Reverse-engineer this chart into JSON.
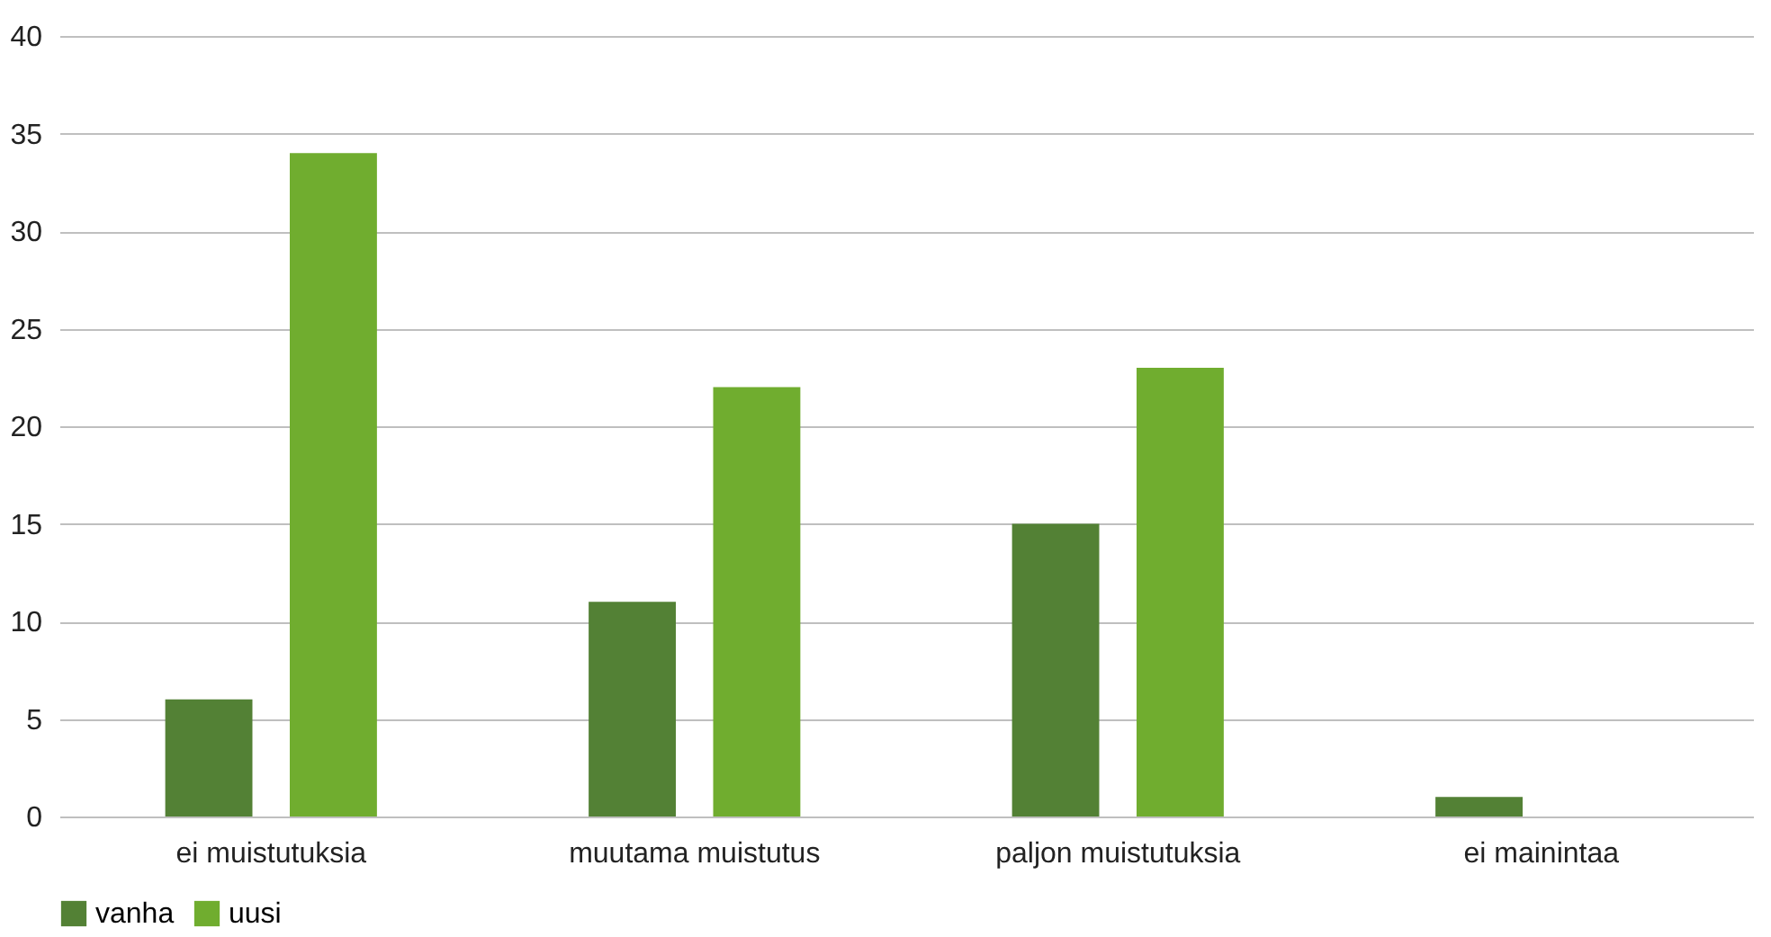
{
  "chart_data": {
    "type": "bar",
    "categories": [
      "ei muistutuksia",
      "muutama muistutus",
      "paljon muistutuksia",
      "ei mainintaa"
    ],
    "series": [
      {
        "name": "vanha",
        "color": "#538135",
        "values": [
          6,
          11,
          15,
          1
        ]
      },
      {
        "name": "uusi",
        "color": "#70ad2f",
        "values": [
          34,
          22,
          23,
          0
        ]
      }
    ],
    "ylim": [
      0,
      40
    ],
    "yticks": [
      0,
      5,
      10,
      15,
      20,
      25,
      30,
      35,
      40
    ],
    "grid": "y",
    "legend": "bottom"
  }
}
